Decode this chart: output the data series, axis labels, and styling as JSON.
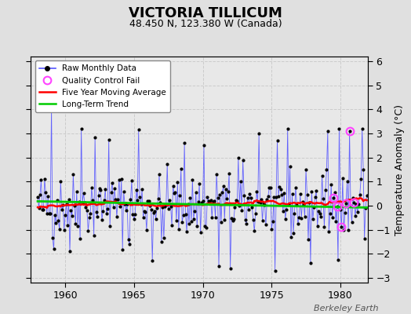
{
  "title": "VICTORIA TILLICUM",
  "subtitle": "48.450 N, 123.380 W (Canada)",
  "ylabel": "Temperature Anomaly (°C)",
  "watermark": "Berkeley Earth",
  "xlim": [
    1957.5,
    1982.0
  ],
  "ylim": [
    -3.2,
    6.2
  ],
  "yticks": [
    -3,
    -2,
    -1,
    0,
    1,
    2,
    3,
    4,
    5,
    6
  ],
  "xticks": [
    1960,
    1965,
    1970,
    1975,
    1980
  ],
  "bg_color": "#e0e0e0",
  "plot_bg_color": "#e8e8e8",
  "raw_color": "#5555ff",
  "raw_dot_color": "#000000",
  "ma_color": "#ff0000",
  "trend_color": "#00cc00",
  "qc_color": "#ff44ff",
  "seed": 42,
  "n_points": 288,
  "start_year": 1958.0,
  "end_year": 1981.917
}
